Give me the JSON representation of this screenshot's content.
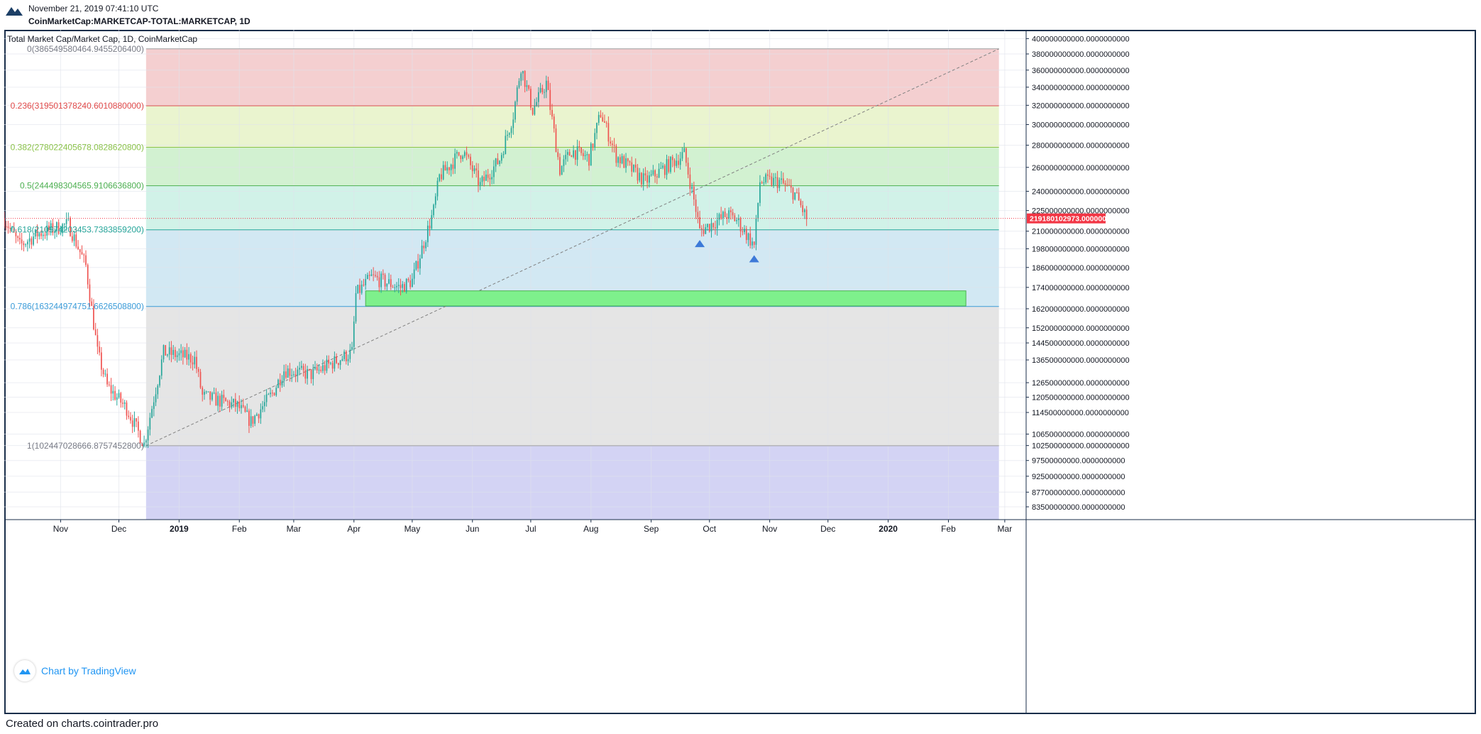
{
  "header": {
    "timestamp": "November 21, 2019 07:41:10 UTC",
    "symbol": "CoinMarketCap:MARKETCAP-TOTAL:MARKETCAP, 1D"
  },
  "footer": {
    "created_on": "Created on charts.cointrader.pro"
  },
  "watermark": {
    "label": "Chart by TradingView"
  },
  "colors": {
    "up": "#26a69a",
    "down": "#ef5350",
    "fib_trend": "#808080",
    "support_zone": "#7ef08c",
    "arrow": "#3d79d8",
    "price_label_bg": "#f23645"
  },
  "chart_data": {
    "type": "candlestick",
    "title": "Total Market Cap/Market Cap, 1D, CoinMarketCap",
    "y_scale": "log",
    "ylim": [
      80000000000,
      410000000000
    ],
    "x_range": [
      "2018-10-03",
      "2020-03-12"
    ],
    "x_tick_labels": [
      {
        "date": "2018-11-01",
        "label": "Nov"
      },
      {
        "date": "2018-12-01",
        "label": "Dec"
      },
      {
        "date": "2019-01-01",
        "label": "2019"
      },
      {
        "date": "2019-02-01",
        "label": "Feb"
      },
      {
        "date": "2019-03-01",
        "label": "Mar"
      },
      {
        "date": "2019-04-01",
        "label": "Apr"
      },
      {
        "date": "2019-05-01",
        "label": "May"
      },
      {
        "date": "2019-06-01",
        "label": "Jun"
      },
      {
        "date": "2019-07-01",
        "label": "Jul"
      },
      {
        "date": "2019-08-01",
        "label": "Aug"
      },
      {
        "date": "2019-09-01",
        "label": "Sep"
      },
      {
        "date": "2019-10-01",
        "label": "Oct"
      },
      {
        "date": "2019-11-01",
        "label": "Nov"
      },
      {
        "date": "2019-12-01",
        "label": "Dec"
      },
      {
        "date": "2020-01-01",
        "label": "2020"
      },
      {
        "date": "2020-02-01",
        "label": "Feb"
      },
      {
        "date": "2020-03-01",
        "label": "Mar"
      }
    ],
    "y_tick_labels": [
      {
        "value": 400000000000,
        "label": "400000000000.0000000000"
      },
      {
        "value": 380000000000,
        "label": "380000000000.0000000000"
      },
      {
        "value": 360000000000,
        "label": "360000000000.0000000000"
      },
      {
        "value": 340000000000,
        "label": "340000000000.0000000000"
      },
      {
        "value": 320000000000,
        "label": "320000000000.0000000000"
      },
      {
        "value": 300000000000,
        "label": "300000000000.0000000000"
      },
      {
        "value": 280000000000,
        "label": "280000000000.0000000000"
      },
      {
        "value": 260000000000,
        "label": "260000000000.0000000000"
      },
      {
        "value": 240000000000,
        "label": "240000000000.0000000000"
      },
      {
        "value": 225000000000,
        "label": "225000000000.0000000000"
      },
      {
        "value": 210000000000,
        "label": "210000000000.0000000000"
      },
      {
        "value": 198000000000,
        "label": "198000000000.0000000000"
      },
      {
        "value": 186000000000,
        "label": "186000000000.0000000000"
      },
      {
        "value": 174000000000,
        "label": "174000000000.0000000000"
      },
      {
        "value": 162000000000,
        "label": "162000000000.0000000000"
      },
      {
        "value": 152000000000,
        "label": "152000000000.0000000000"
      },
      {
        "value": 144500000000,
        "label": "144500000000.0000000000"
      },
      {
        "value": 136500000000,
        "label": "136500000000.0000000000"
      },
      {
        "value": 126500000000,
        "label": "126500000000.0000000000"
      },
      {
        "value": 120500000000,
        "label": "120500000000.0000000000"
      },
      {
        "value": 114500000000,
        "label": "114500000000.0000000000"
      },
      {
        "value": 106500000000,
        "label": "106500000000.0000000000"
      },
      {
        "value": 102500000000,
        "label": "102500000000.0000000000"
      },
      {
        "value": 97500000000,
        "label": "97500000000.0000000000"
      },
      {
        "value": 92500000000,
        "label": "92500000000.0000000000"
      },
      {
        "value": 87700000000,
        "label": "87700000000.0000000000"
      },
      {
        "value": 83500000000,
        "label": "83500000000.0000000000"
      }
    ],
    "current_price": {
      "value": 219180102973,
      "label": "219180102973.0000000000"
    },
    "fib_retracement": {
      "start": {
        "date": "2018-12-15",
        "value": 102447028666.8757
      },
      "end": {
        "date": "2020-02-27",
        "value": 386549580464.9455
      },
      "levels": [
        {
          "label": "0(386549580464.9455206400)",
          "value": 386549580464.9455,
          "line_color": "#9e9e9e",
          "fill": "#f4cfd0",
          "text_color": "#787b86"
        },
        {
          "label": "0.236(319501378240.6010880000)",
          "value": 319501378240.601,
          "line_color": "#e04848",
          "fill": "#eaf4cf",
          "text_color": "#e04848"
        },
        {
          "label": "0.382(278022405678.0828620800)",
          "value": 278022405678.0829,
          "line_color": "#8bc34a",
          "fill": "#d2f1d1",
          "text_color": "#8bc34a"
        },
        {
          "label": "0.5(244498304565.9106636800)",
          "value": 244498304565.91068,
          "line_color": "#4caf50",
          "fill": "#d1f2e8",
          "text_color": "#4caf50"
        },
        {
          "label": "0.618(210974203453.7383859200)",
          "value": 210974203453.7384,
          "line_color": "#26a69a",
          "fill": "#d2e8f3",
          "text_color": "#26a69a"
        },
        {
          "label": "0.786(163244974751.6626508800)",
          "value": 163244974751.66266,
          "line_color": "#3a9bd8",
          "fill": "#e5e5e5",
          "text_color": "#3a9bd8"
        },
        {
          "label": "1(102447028666.8757452800)",
          "value": 102447028666.87575,
          "line_color": "#9e9e9e",
          "fill": "#d3d3f4",
          "text_color": "#787b86"
        }
      ]
    },
    "support_zone": {
      "start": "2019-04-07",
      "end": "2020-02-10",
      "low": 163500000000,
      "high": 172000000000
    },
    "markers": [
      {
        "date": "2019-09-26",
        "value": 201500000000,
        "shape": "triangle-up"
      },
      {
        "date": "2019-10-24",
        "value": 191500000000,
        "shape": "triangle-up"
      }
    ],
    "anchors": [
      [
        "2018-10-03",
        219000000000
      ],
      [
        "2018-10-11",
        200000000000
      ],
      [
        "2018-10-20",
        208000000000
      ],
      [
        "2018-11-05",
        215000000000
      ],
      [
        "2018-11-14",
        187000000000
      ],
      [
        "2018-11-20",
        140000000000
      ],
      [
        "2018-11-25",
        125000000000
      ],
      [
        "2018-12-05",
        116000000000
      ],
      [
        "2018-12-14",
        103000000000
      ],
      [
        "2018-12-24",
        140000000000
      ],
      [
        "2019-01-09",
        137000000000
      ],
      [
        "2019-01-13",
        121000000000
      ],
      [
        "2019-01-31",
        117000000000
      ],
      [
        "2019-02-07",
        111000000000
      ],
      [
        "2019-02-18",
        122000000000
      ],
      [
        "2019-02-24",
        132000000000
      ],
      [
        "2019-03-10",
        130000000000
      ],
      [
        "2019-03-31",
        140000000000
      ],
      [
        "2019-04-02",
        170000000000
      ],
      [
        "2019-04-10",
        180000000000
      ],
      [
        "2019-04-25",
        174000000000
      ],
      [
        "2019-05-01",
        178000000000
      ],
      [
        "2019-05-12",
        225000000000
      ],
      [
        "2019-05-15",
        252000000000
      ],
      [
        "2019-05-27",
        275000000000
      ],
      [
        "2019-06-05",
        245000000000
      ],
      [
        "2019-06-15",
        267000000000
      ],
      [
        "2019-06-22",
        310000000000
      ],
      [
        "2019-06-26",
        365000000000
      ],
      [
        "2019-07-02",
        315000000000
      ],
      [
        "2019-07-09",
        345000000000
      ],
      [
        "2019-07-16",
        258000000000
      ],
      [
        "2019-07-22",
        275000000000
      ],
      [
        "2019-07-31",
        268000000000
      ],
      [
        "2019-08-06",
        312000000000
      ],
      [
        "2019-08-14",
        270000000000
      ],
      [
        "2019-08-29",
        248000000000
      ],
      [
        "2019-09-18",
        272000000000
      ],
      [
        "2019-09-24",
        226000000000
      ],
      [
        "2019-09-26",
        210000000000
      ],
      [
        "2019-10-10",
        222000000000
      ],
      [
        "2019-10-15",
        218000000000
      ],
      [
        "2019-10-24",
        200000000000
      ],
      [
        "2019-10-27",
        248000000000
      ],
      [
        "2019-11-06",
        248000000000
      ],
      [
        "2019-11-14",
        238000000000
      ],
      [
        "2019-11-20",
        219180000000
      ]
    ]
  }
}
